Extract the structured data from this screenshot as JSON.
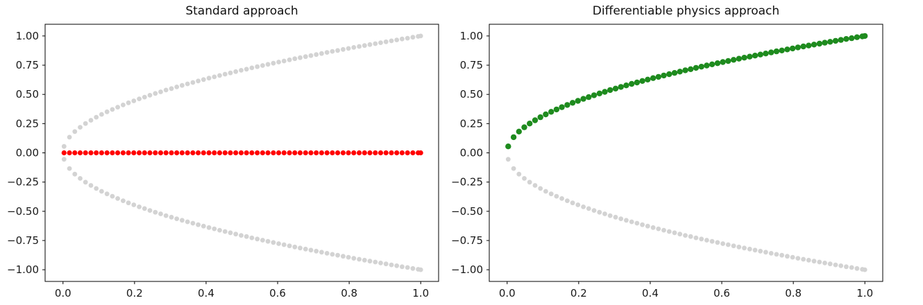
{
  "figure": {
    "background": "#ffffff",
    "text_color": "#1a1a1a",
    "spine_color": "#000000",
    "gray_reference_color": "#d3d3d3",
    "red_prediction_color": "#ff0000",
    "green_prediction_color": "#1e8b1e"
  },
  "chart_data": {
    "type": "scatter",
    "description": "Two side-by-side scatter plots comparing neural network fits of the two-branch function y = +/- sqrt(x). Gray dots are reference data samples on both parabola branches; in the left plot a supervised (standard) network collapses to the mean y = 0 (red dots); in the right plot a differentiable-physics trained network recovers the upper branch y = +sqrt(x) (green dots).",
    "shared_x": [
      0.003,
      0.018,
      0.033,
      0.048,
      0.063,
      0.078,
      0.093,
      0.108,
      0.123,
      0.138,
      0.153,
      0.168,
      0.183,
      0.198,
      0.213,
      0.228,
      0.243,
      0.258,
      0.273,
      0.288,
      0.303,
      0.318,
      0.333,
      0.348,
      0.363,
      0.378,
      0.393,
      0.408,
      0.423,
      0.438,
      0.453,
      0.468,
      0.483,
      0.498,
      0.513,
      0.528,
      0.543,
      0.558,
      0.573,
      0.588,
      0.603,
      0.618,
      0.633,
      0.648,
      0.663,
      0.678,
      0.693,
      0.708,
      0.723,
      0.738,
      0.753,
      0.768,
      0.783,
      0.798,
      0.813,
      0.828,
      0.843,
      0.858,
      0.873,
      0.888,
      0.903,
      0.918,
      0.933,
      0.948,
      0.963,
      0.978,
      0.993,
      1.0
    ],
    "shared_sqrt_y": [
      0.055,
      0.134,
      0.182,
      0.219,
      0.251,
      0.279,
      0.305,
      0.329,
      0.351,
      0.371,
      0.391,
      0.41,
      0.428,
      0.445,
      0.462,
      0.477,
      0.493,
      0.508,
      0.522,
      0.537,
      0.55,
      0.564,
      0.577,
      0.59,
      0.602,
      0.615,
      0.627,
      0.639,
      0.65,
      0.662,
      0.673,
      0.684,
      0.695,
      0.706,
      0.716,
      0.727,
      0.737,
      0.747,
      0.757,
      0.767,
      0.777,
      0.786,
      0.796,
      0.805,
      0.814,
      0.823,
      0.832,
      0.841,
      0.85,
      0.859,
      0.868,
      0.876,
      0.885,
      0.893,
      0.902,
      0.91,
      0.918,
      0.926,
      0.934,
      0.942,
      0.95,
      0.958,
      0.966,
      0.974,
      0.981,
      0.989,
      0.996,
      1.0
    ],
    "charts": [
      {
        "title": "Standard approach",
        "xlabel": "",
        "ylabel": "",
        "xlim": [
          -0.05,
          1.05
        ],
        "ylim": [
          -1.1,
          1.1
        ],
        "grid": false,
        "legend": null,
        "xticks": [
          0.0,
          0.2,
          0.4,
          0.6,
          0.8,
          1.0
        ],
        "xtick_labels": [
          "0.0",
          "0.2",
          "0.4",
          "0.6",
          "0.8",
          "1.0"
        ],
        "yticks": [
          1.0,
          0.75,
          0.5,
          0.25,
          0.0,
          -0.25,
          -0.5,
          -0.75,
          -1.0
        ],
        "ytick_labels": [
          "1.00",
          "0.75",
          "0.50",
          "0.25",
          "0.00",
          "−0.25",
          "−0.50",
          "−0.75",
          "−1.00"
        ],
        "series": [
          {
            "name": "reference-upper-branch",
            "relation": "y = +sqrt(x)",
            "color": "#d3d3d3",
            "marker": "circle",
            "marker_radius": 3.4,
            "y_source": "sqrt",
            "sign": 1
          },
          {
            "name": "reference-lower-branch",
            "relation": "y = -sqrt(x)",
            "color": "#d3d3d3",
            "marker": "circle",
            "marker_radius": 3.4,
            "y_source": "sqrt",
            "sign": -1
          },
          {
            "name": "network-prediction-collapsed-mean",
            "relation": "y = 0",
            "color": "#ff0000",
            "marker": "circle",
            "marker_radius": 3.6,
            "y_source": "zero",
            "sign": 1
          }
        ]
      },
      {
        "title": "Differentiable physics approach",
        "xlabel": "",
        "ylabel": "",
        "xlim": [
          -0.05,
          1.05
        ],
        "ylim": [
          -1.1,
          1.1
        ],
        "grid": false,
        "legend": null,
        "xticks": [
          0.0,
          0.2,
          0.4,
          0.6,
          0.8,
          1.0
        ],
        "xtick_labels": [
          "0.0",
          "0.2",
          "0.4",
          "0.6",
          "0.8",
          "1.0"
        ],
        "yticks": [
          1.0,
          0.75,
          0.5,
          0.25,
          0.0,
          -0.25,
          -0.5,
          -0.75,
          -1.0
        ],
        "ytick_labels": [
          "1.00",
          "0.75",
          "0.50",
          "0.25",
          "0.00",
          "−0.25",
          "−0.50",
          "−0.75",
          "−1.00"
        ],
        "series": [
          {
            "name": "reference-lower-branch",
            "relation": "y = -sqrt(x)",
            "color": "#d3d3d3",
            "marker": "circle",
            "marker_radius": 3.4,
            "y_source": "sqrt",
            "sign": -1
          },
          {
            "name": "network-prediction-upper-branch",
            "relation": "y = +sqrt(x)",
            "color": "#1e8b1e",
            "marker": "circle",
            "marker_radius": 4.2,
            "y_source": "sqrt",
            "sign": 1
          }
        ]
      }
    ]
  }
}
